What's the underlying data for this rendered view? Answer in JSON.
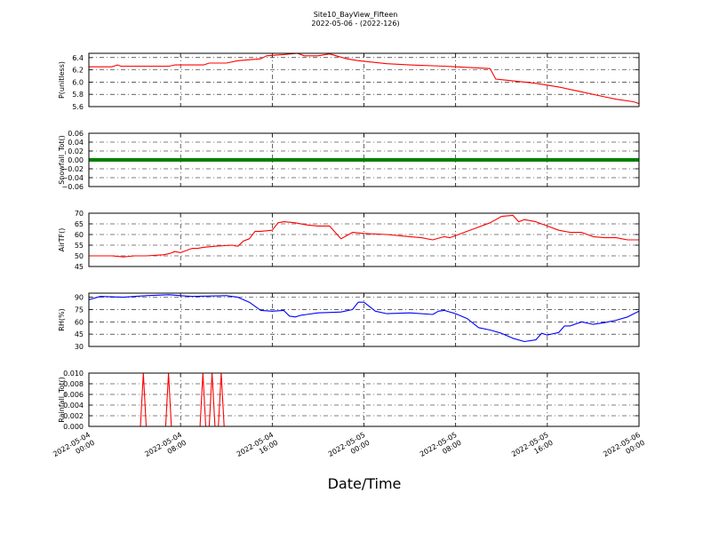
{
  "figure": {
    "title_line1": "Site10_BayView_Fifteen",
    "title_line2": "2022-05-06 - (2022-126)",
    "xlabel": "Date/Time"
  },
  "chart_data": [
    {
      "type": "line",
      "ylabel": "P(unitless)",
      "ylim": [
        5.6,
        6.47
      ],
      "yticks": [
        "6.4",
        "6.2",
        "6.0",
        "5.8",
        "5.6"
      ],
      "ytick_values": [
        6.4,
        6.2,
        6.0,
        5.8,
        5.6
      ],
      "color": "#ff0000",
      "x_hours": [
        0,
        2,
        2.5,
        2.8,
        7,
        7.5,
        10,
        10.5,
        12,
        13,
        15,
        15.5,
        17,
        18.2,
        18.8,
        20,
        21,
        22.5,
        23.5,
        26,
        28,
        31,
        35,
        35.5,
        36,
        38.5,
        39,
        41,
        42.5,
        43,
        45,
        46,
        47.5,
        48
      ],
      "values": [
        6.25,
        6.25,
        6.28,
        6.26,
        6.26,
        6.28,
        6.28,
        6.31,
        6.31,
        6.35,
        6.38,
        6.43,
        6.45,
        6.47,
        6.43,
        6.43,
        6.46,
        6.38,
        6.35,
        6.3,
        6.28,
        6.26,
        6.22,
        6.05,
        6.04,
        5.99,
        5.98,
        5.92,
        5.86,
        5.84,
        5.76,
        5.72,
        5.68,
        5.65
      ]
    },
    {
      "type": "scatter",
      "ylabel": "Snowfall_Tot()",
      "ylim": [
        -0.06,
        0.06
      ],
      "yticks": [
        "0.06",
        "0.04",
        "0.02",
        "0.00",
        "−0.02",
        "−0.04",
        "−0.06"
      ],
      "ytick_values": [
        0.06,
        0.04,
        0.02,
        0.0,
        -0.02,
        -0.04,
        -0.06
      ],
      "color": "#008000",
      "constant_value": 0.0
    },
    {
      "type": "line",
      "ylabel": "AirTF()",
      "ylim": [
        45,
        70
      ],
      "yticks": [
        "70",
        "65",
        "60",
        "55",
        "50",
        "45"
      ],
      "ytick_values": [
        70,
        65,
        60,
        55,
        50,
        45
      ],
      "color": "#ff0000",
      "x_hours": [
        0,
        2,
        3,
        4,
        5,
        6.5,
        7,
        7.5,
        8,
        9,
        9.5,
        10,
        11,
        12.5,
        13,
        13.5,
        14,
        14.5,
        15,
        16,
        16.5,
        17,
        18,
        19,
        20,
        21,
        22,
        23,
        24,
        26,
        28,
        29,
        30,
        31,
        31.5,
        33,
        34,
        35,
        36,
        37,
        37.5,
        38,
        39,
        40,
        41,
        42,
        43,
        44,
        45,
        46,
        46.5,
        47,
        48
      ],
      "values": [
        50,
        50,
        49.5,
        50,
        50,
        50.5,
        51,
        52,
        51.5,
        53.5,
        53.5,
        54,
        54.5,
        55,
        54.5,
        57,
        58,
        61.5,
        61.5,
        62,
        65.5,
        66,
        65.5,
        64.5,
        64,
        64,
        58,
        61,
        60.5,
        60,
        59,
        58.5,
        57.5,
        59,
        58.5,
        61.5,
        63.5,
        65.5,
        68.5,
        69,
        66,
        67,
        66,
        64,
        62,
        61,
        61,
        59,
        58.5,
        58.5,
        58,
        57.5,
        57.5
      ]
    },
    {
      "type": "line",
      "ylabel": "RH(%)",
      "ylim": [
        30,
        95
      ],
      "yticks": [
        "90",
        "75",
        "60",
        "45",
        "30"
      ],
      "ytick_values": [
        90,
        75,
        60,
        45,
        30
      ],
      "color": "#0000ff",
      "x_hours": [
        0,
        1,
        3,
        5,
        7,
        8,
        9,
        12,
        13,
        14,
        15,
        16,
        17,
        17.5,
        18,
        18.5,
        19,
        20,
        22,
        23,
        23.5,
        24,
        25,
        26,
        28,
        30,
        30.5,
        31,
        32,
        33,
        34,
        35,
        36,
        37,
        38,
        39,
        39.5,
        40,
        41,
        41.5,
        42,
        43,
        44,
        45,
        46,
        47,
        48
      ],
      "values": [
        87,
        91,
        90,
        92,
        93,
        92,
        91,
        92,
        90,
        84,
        74,
        73,
        74,
        67,
        66,
        68,
        69,
        71,
        72,
        75,
        84,
        84,
        73,
        70,
        71,
        69,
        73,
        74,
        70,
        64,
        53,
        50,
        46,
        40,
        36,
        38,
        46,
        44,
        47,
        55,
        55,
        60,
        57,
        59,
        62,
        66,
        73
      ]
    },
    {
      "type": "line",
      "ylabel": "Rainfall_Tot()",
      "ylim": [
        0,
        0.01
      ],
      "yticks": [
        "0.010",
        "0.008",
        "0.006",
        "0.004",
        "0.002",
        "0.000"
      ],
      "ytick_values": [
        0.01,
        0.008,
        0.006,
        0.004,
        0.002,
        0.0
      ],
      "color": "#ff0000",
      "x_hours": [
        0,
        4.5,
        4.75,
        5.0,
        6.7,
        6.95,
        7.2,
        9.7,
        9.95,
        10.2,
        10.5,
        10.75,
        11.0,
        11.3,
        11.55,
        11.8,
        48
      ],
      "values": [
        0,
        0,
        0.01,
        0,
        0,
        0.01,
        0,
        0,
        0.01,
        0,
        0,
        0.01,
        0,
        0,
        0.01,
        0,
        0
      ]
    }
  ],
  "x_axis": {
    "xlim_hours": [
      0,
      48
    ],
    "ticks": [
      {
        "hours": 0,
        "line1": "2022-05-04",
        "line2": "00:00"
      },
      {
        "hours": 8,
        "line1": "2022-05-04",
        "line2": "08:00"
      },
      {
        "hours": 16,
        "line1": "2022-05-04",
        "line2": "16:00"
      },
      {
        "hours": 24,
        "line1": "2022-05-05",
        "line2": "00:00"
      },
      {
        "hours": 32,
        "line1": "2022-05-05",
        "line2": "08:00"
      },
      {
        "hours": 40,
        "line1": "2022-05-05",
        "line2": "16:00"
      },
      {
        "hours": 48,
        "line1": "2022-05-06",
        "line2": "00:00"
      }
    ],
    "grid": true
  }
}
